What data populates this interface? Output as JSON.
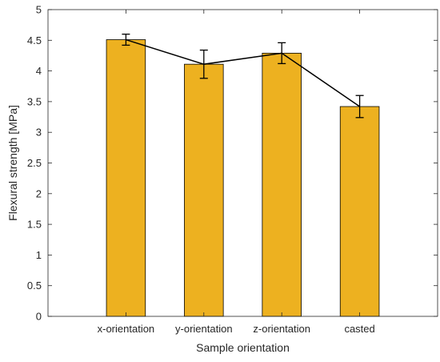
{
  "chart_data": {
    "type": "bar",
    "title": "",
    "xlabel": "Sample orientation",
    "ylabel": "Flexural strength [MPa]",
    "categories": [
      "x-orientation",
      "y-orientation",
      "z-orientation",
      "casted"
    ],
    "values": [
      4.51,
      4.11,
      4.29,
      3.42
    ],
    "error_low": [
      0.09,
      0.23,
      0.17,
      0.18
    ],
    "error_high": [
      0.09,
      0.23,
      0.17,
      0.18
    ],
    "connecting_line": true,
    "ylim": [
      0,
      5
    ],
    "yticks": [
      "0",
      "0.5",
      "1",
      "1.5",
      "2",
      "2.5",
      "3",
      "3.5",
      "4",
      "4.5",
      "5"
    ],
    "grid": false,
    "bar_color": "#EDB120",
    "edge_color": "#000000",
    "axis_color": "#262626"
  }
}
